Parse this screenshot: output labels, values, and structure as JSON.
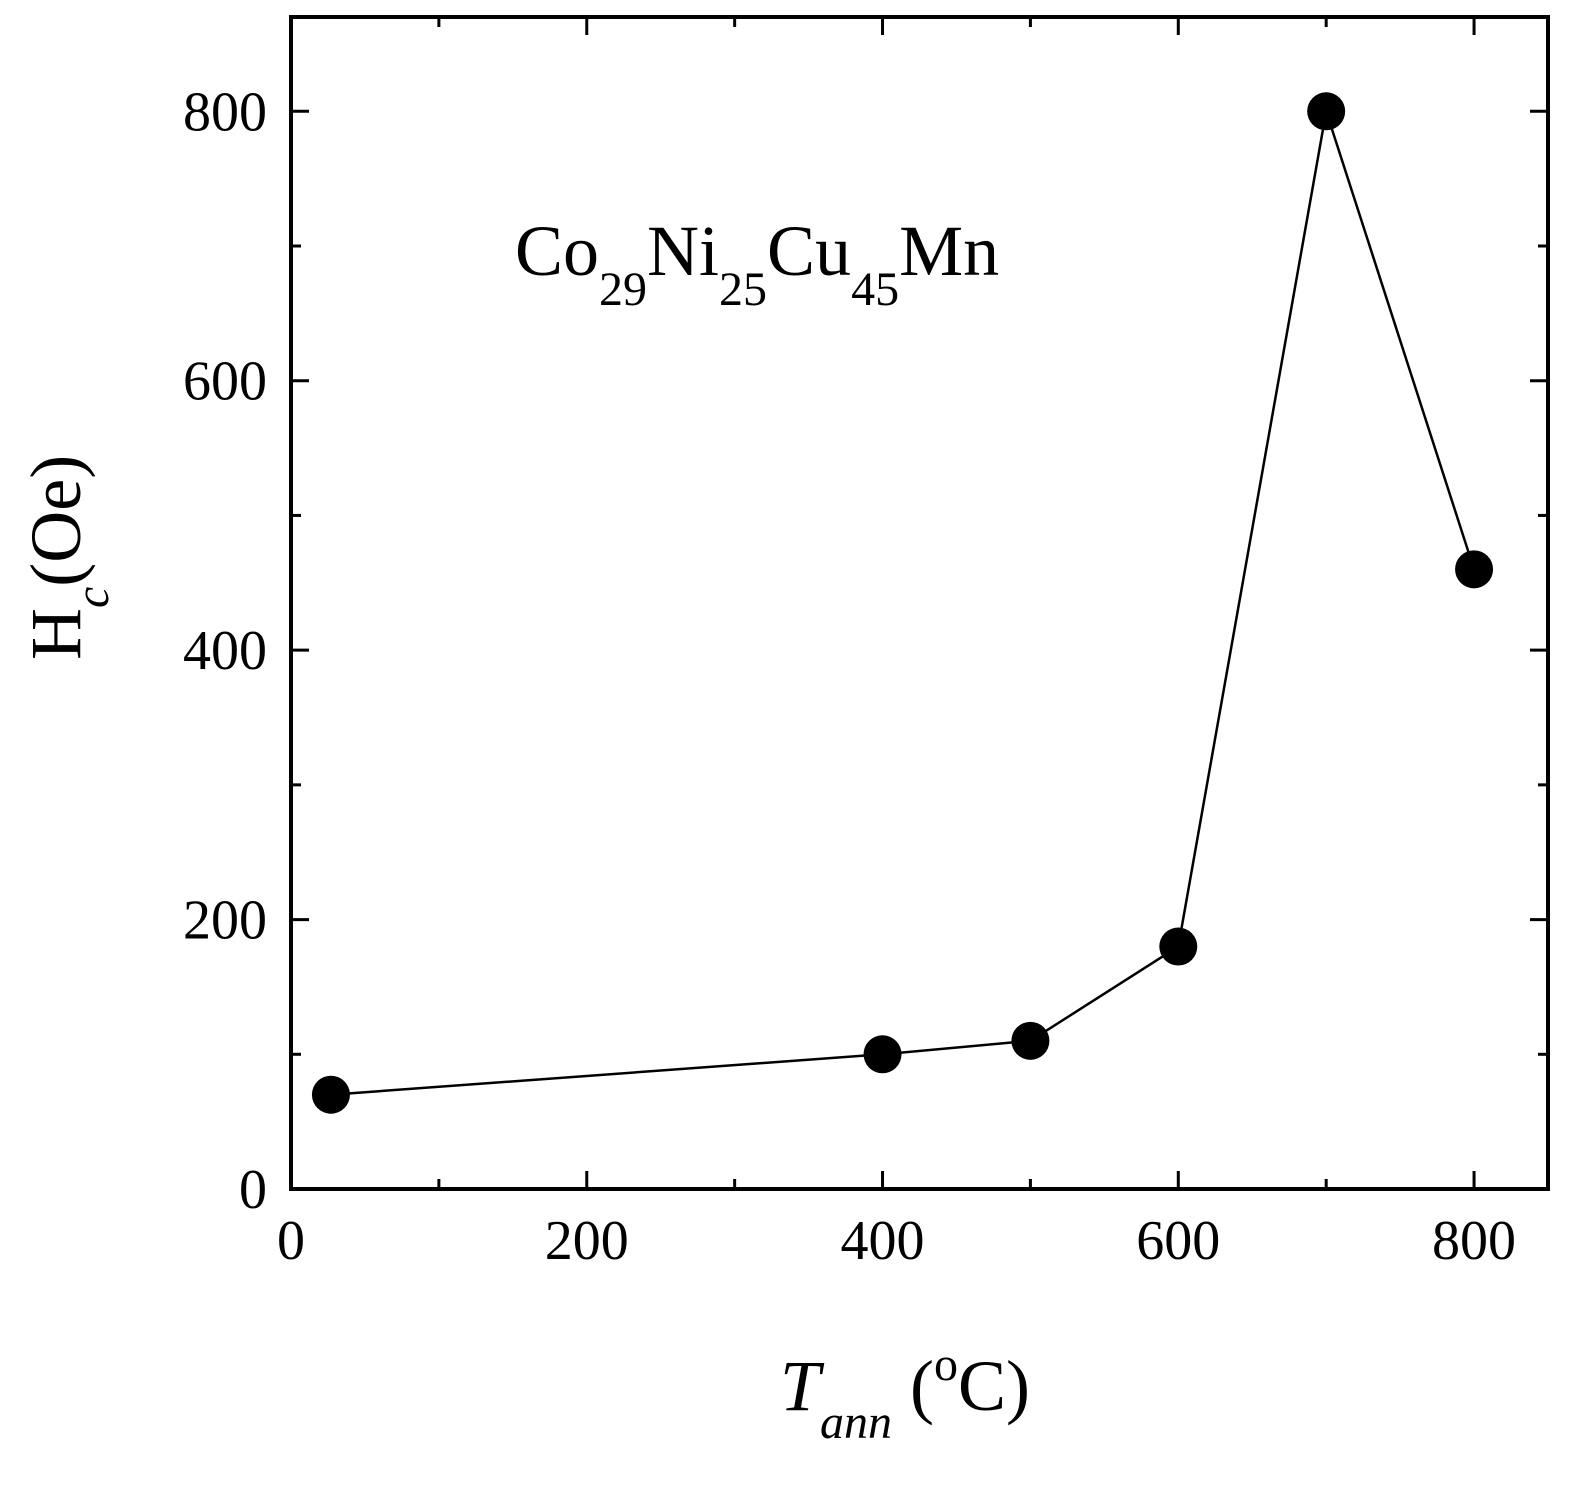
{
  "chart_data": {
    "type": "line",
    "annotation": {
      "parts": [
        {
          "text": "Co",
          "sub": false
        },
        {
          "text": "29",
          "sub": true
        },
        {
          "text": "Ni",
          "sub": false
        },
        {
          "text": "25",
          "sub": true
        },
        {
          "text": "Cu",
          "sub": false
        },
        {
          "text": "45",
          "sub": true
        },
        {
          "text": "Mn",
          "sub": false
        }
      ]
    },
    "xlabel": {
      "main": "T",
      "sub": "ann",
      "unit_open": " (",
      "unit_sup": "o",
      "unit_close": "C)"
    },
    "ylabel": {
      "main": "H",
      "sub": "c",
      "unit": "(Oe)"
    },
    "xlim": [
      0,
      850
    ],
    "ylim": [
      0,
      870
    ],
    "x_major_ticks": [
      0,
      200,
      400,
      600,
      800
    ],
    "x_minor_ticks": [
      100,
      300,
      500,
      700
    ],
    "y_major_ticks": [
      0,
      200,
      400,
      600,
      800
    ],
    "y_minor_ticks": [
      100,
      300,
      500,
      700
    ],
    "x_tick_labels": [
      "0",
      "200",
      "400",
      "600",
      "800"
    ],
    "y_tick_labels": [
      "0",
      "200",
      "400",
      "600",
      "800"
    ],
    "grid": false,
    "series": [
      {
        "x": [
          27,
          400,
          500,
          600,
          700,
          800
        ],
        "y": [
          70,
          100,
          110,
          180,
          800,
          460
        ],
        "marker": "filled-circle",
        "color": "#000000"
      }
    ]
  }
}
